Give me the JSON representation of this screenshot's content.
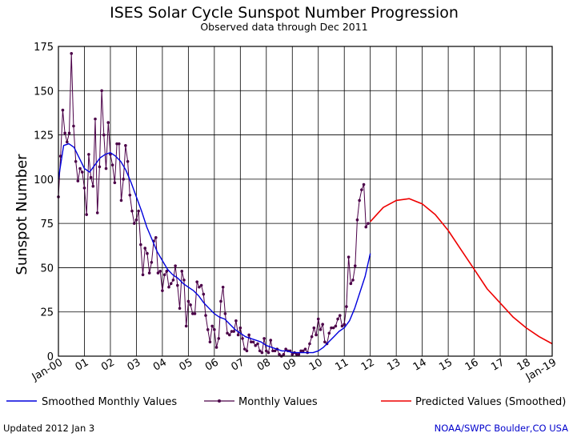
{
  "chart_data": {
    "type": "line",
    "title": "ISES Solar Cycle Sunspot Number Progression",
    "subtitle": "Observed data through Dec 2011",
    "ylabel": "Sunspot Number",
    "ylim": [
      0,
      175
    ],
    "yticks": [
      0,
      25,
      50,
      75,
      100,
      125,
      150,
      175
    ],
    "xlim": [
      2000.0,
      2019.0
    ],
    "x_tick_labels": [
      "Jan-00",
      "01",
      "02",
      "03",
      "04",
      "05",
      "06",
      "07",
      "08",
      "09",
      "10",
      "11",
      "12",
      "13",
      "14",
      "15",
      "16",
      "17",
      "18",
      "Jan-19"
    ],
    "grid": true,
    "legend_position": "bottom",
    "series": [
      {
        "name": "Smoothed Monthly Values",
        "color": "#0000dd",
        "x": [
          2000.0,
          2000.2,
          2000.4,
          2000.6,
          2000.8,
          2001.0,
          2001.2,
          2001.4,
          2001.6,
          2001.8,
          2002.0,
          2002.2,
          2002.4,
          2002.6,
          2002.8,
          2003.0,
          2003.2,
          2003.4,
          2003.6,
          2003.8,
          2004.0,
          2004.2,
          2004.4,
          2004.6,
          2004.8,
          2005.0,
          2005.2,
          2005.4,
          2005.6,
          2005.8,
          2006.0,
          2006.2,
          2006.4,
          2006.6,
          2006.8,
          2007.0,
          2007.2,
          2007.4,
          2007.6,
          2007.8,
          2008.0,
          2008.2,
          2008.4,
          2008.6,
          2008.8,
          2009.0,
          2009.2,
          2009.4,
          2009.6,
          2009.8,
          2010.0,
          2010.2,
          2010.4,
          2010.6,
          2010.8,
          2011.0,
          2011.2,
          2011.4,
          2011.6,
          2011.8,
          2012.0
        ],
        "y": [
          100,
          119,
          120,
          118,
          112,
          106,
          104,
          108,
          112,
          114,
          115,
          113,
          110,
          105,
          98,
          90,
          82,
          73,
          66,
          59,
          54,
          49,
          46,
          44,
          41,
          39,
          37,
          34,
          30,
          27,
          24,
          22,
          21,
          18,
          15,
          13,
          11,
          10,
          9,
          8,
          6,
          5,
          4,
          3,
          3,
          2,
          2,
          2,
          2,
          2,
          3,
          5,
          8,
          11,
          14,
          16,
          20,
          27,
          36,
          45,
          58
        ]
      },
      {
        "name": "Monthly Values",
        "color": "#4b0048",
        "x": [
          2000.0,
          2000.083,
          2000.167,
          2000.25,
          2000.333,
          2000.417,
          2000.5,
          2000.583,
          2000.667,
          2000.75,
          2000.833,
          2000.917,
          2001.0,
          2001.083,
          2001.167,
          2001.25,
          2001.333,
          2001.417,
          2001.5,
          2001.583,
          2001.667,
          2001.75,
          2001.833,
          2001.917,
          2002.0,
          2002.083,
          2002.167,
          2002.25,
          2002.333,
          2002.417,
          2002.5,
          2002.583,
          2002.667,
          2002.75,
          2002.833,
          2002.917,
          2003.0,
          2003.083,
          2003.167,
          2003.25,
          2003.333,
          2003.417,
          2003.5,
          2003.583,
          2003.667,
          2003.75,
          2003.833,
          2003.917,
          2004.0,
          2004.083,
          2004.167,
          2004.25,
          2004.333,
          2004.417,
          2004.5,
          2004.583,
          2004.667,
          2004.75,
          2004.833,
          2004.917,
          2005.0,
          2005.083,
          2005.167,
          2005.25,
          2005.333,
          2005.417,
          2005.5,
          2005.583,
          2005.667,
          2005.75,
          2005.833,
          2005.917,
          2006.0,
          2006.083,
          2006.167,
          2006.25,
          2006.333,
          2006.417,
          2006.5,
          2006.583,
          2006.667,
          2006.75,
          2006.833,
          2006.917,
          2007.0,
          2007.083,
          2007.167,
          2007.25,
          2007.333,
          2007.417,
          2007.5,
          2007.583,
          2007.667,
          2007.75,
          2007.833,
          2007.917,
          2008.0,
          2008.083,
          2008.167,
          2008.25,
          2008.333,
          2008.417,
          2008.5,
          2008.583,
          2008.667,
          2008.75,
          2008.833,
          2008.917,
          2009.0,
          2009.083,
          2009.167,
          2009.25,
          2009.333,
          2009.417,
          2009.5,
          2009.583,
          2009.667,
          2009.75,
          2009.833,
          2009.917,
          2010.0,
          2010.083,
          2010.167,
          2010.25,
          2010.333,
          2010.417,
          2010.5,
          2010.583,
          2010.667,
          2010.75,
          2010.833,
          2010.917,
          2011.0,
          2011.083,
          2011.167,
          2011.25,
          2011.333,
          2011.417,
          2011.5,
          2011.583,
          2011.667,
          2011.75,
          2011.833,
          2011.917
        ],
        "y": [
          90,
          113,
          139,
          126,
          121,
          126,
          171,
          130,
          110,
          99,
          106,
          104,
          95,
          80,
          114,
          101,
          96,
          134,
          81,
          107,
          150,
          125,
          106,
          132,
          114,
          108,
          98,
          120,
          120,
          88,
          100,
          119,
          110,
          91,
          82,
          75,
          77,
          82,
          63,
          46,
          61,
          58,
          47,
          53,
          65,
          67,
          47,
          48,
          37,
          46,
          48,
          39,
          41,
          43,
          51,
          40,
          27,
          48,
          43,
          17,
          31,
          29,
          24,
          24,
          42,
          39,
          40,
          35,
          23,
          15,
          8,
          17,
          15,
          5,
          10,
          31,
          39,
          24,
          13,
          12,
          14,
          14,
          20,
          12,
          16,
          10,
          4,
          3,
          12,
          8,
          8,
          6,
          7,
          3,
          2,
          10,
          3,
          2,
          9,
          3,
          3,
          4,
          1,
          0,
          1,
          4,
          3,
          3,
          1,
          2,
          1,
          1,
          3,
          3,
          4,
          2,
          7,
          11,
          16,
          12,
          21,
          15,
          18,
          8,
          7,
          13,
          16,
          16,
          17,
          21,
          23,
          17,
          18,
          28,
          56,
          41,
          43,
          51,
          77,
          88,
          94,
          97,
          73,
          75
        ]
      },
      {
        "name": "Predicted Values (Smoothed)",
        "color": "#ee0000",
        "x": [
          2012.0,
          2012.5,
          2013.0,
          2013.5,
          2014.0,
          2014.5,
          2015.0,
          2015.5,
          2016.0,
          2016.5,
          2017.0,
          2017.5,
          2018.0,
          2018.5,
          2019.0
        ],
        "y": [
          76,
          84,
          88,
          89,
          86,
          80,
          71,
          60,
          49,
          38,
          30,
          22,
          16,
          11,
          7
        ]
      }
    ]
  },
  "footer": {
    "left": "Updated 2012 Jan  3",
    "right": "NOAA/SWPC Boulder,CO USA"
  }
}
